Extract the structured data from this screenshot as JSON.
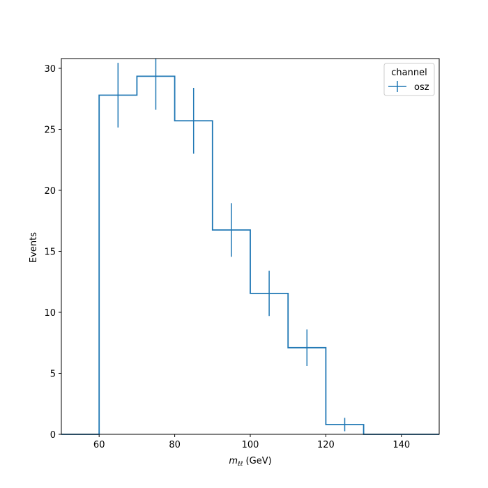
{
  "chart_data": {
    "type": "histogram",
    "bin_edges": [
      50,
      60,
      70,
      80,
      90,
      100,
      110,
      120,
      130,
      140,
      150
    ],
    "values": [
      0,
      27.8,
      29.35,
      25.7,
      16.75,
      11.55,
      7.1,
      0.8,
      0,
      0
    ],
    "errors": [
      0,
      2.65,
      2.75,
      2.7,
      2.2,
      1.85,
      1.5,
      0.55,
      0,
      0
    ],
    "xlabel_main": "m",
    "xlabel_sub": "ℓℓ",
    "xlabel_unit": " (GeV)",
    "ylabel": "Events",
    "xlim": [
      50,
      150
    ],
    "ylim": [
      0,
      30.8
    ],
    "xticks": [
      60,
      80,
      100,
      120,
      140
    ],
    "yticks": [
      0,
      5,
      10,
      15,
      20,
      25,
      30
    ],
    "grid": false,
    "legend": {
      "title": "channel",
      "placement": "top-right",
      "entries": [
        {
          "name": "osz",
          "color": "#1f77b4"
        }
      ]
    },
    "series_color": "#1f77b4"
  }
}
